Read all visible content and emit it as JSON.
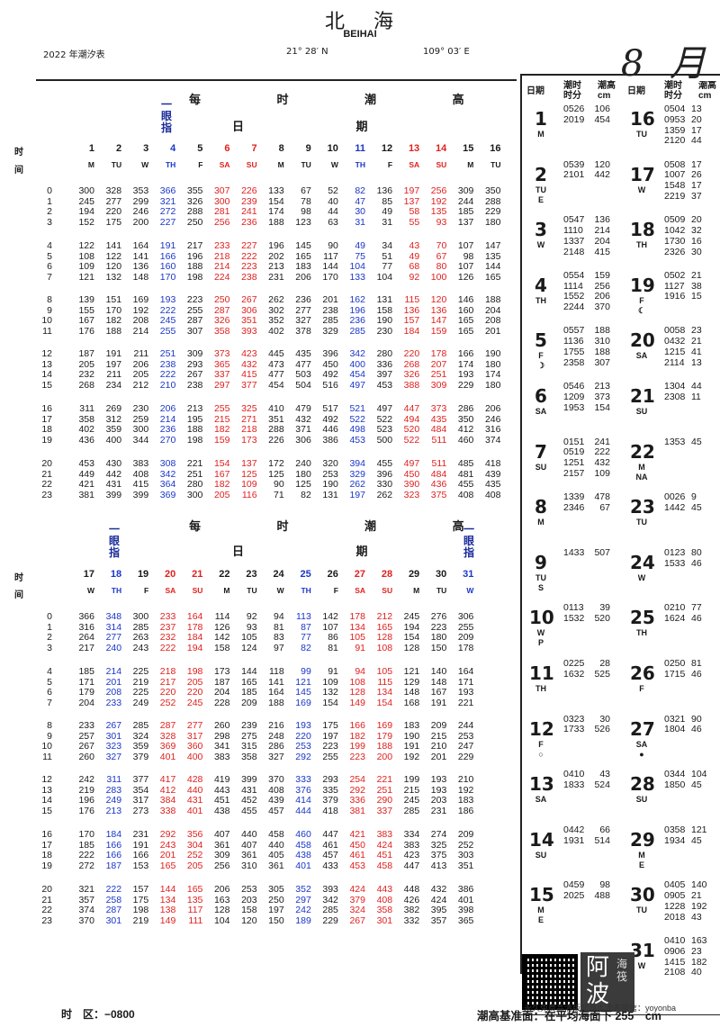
{
  "header": {
    "station_cn": "北海",
    "station_en": "BEIHAI",
    "table_title": "2022 年潮汐表",
    "lat": "21° 28′ N",
    "lon": "109° 03′ E",
    "month": "8 月"
  },
  "section_title": "每 时 潮 高",
  "date_label": "日 期",
  "hour_label_a": "时",
  "hour_label_b": "间",
  "note_text": "一眼指",
  "top": {
    "days": [
      "1",
      "2",
      "3",
      "4",
      "5",
      "6",
      "7",
      "8",
      "9",
      "10",
      "11",
      "12",
      "13",
      "14",
      "15",
      "16"
    ],
    "weekdays": [
      "M",
      "TU",
      "W",
      "TH",
      "F",
      "SA",
      "SU",
      "M",
      "TU",
      "W",
      "TH",
      "F",
      "SA",
      "SU",
      "M",
      "TU"
    ],
    "hours": [
      "0",
      "1",
      "2",
      "3",
      "4",
      "5",
      "6",
      "7",
      "8",
      "9",
      "10",
      "11",
      "12",
      "13",
      "14",
      "15",
      "16",
      "17",
      "18",
      "19",
      "20",
      "21",
      "22",
      "23"
    ],
    "rows": [
      [
        "300",
        "328",
        "353",
        "366",
        "355",
        "307",
        "226",
        "133",
        "67",
        "52",
        "82",
        "136",
        "197",
        "256",
        "309",
        "350"
      ],
      [
        "245",
        "277",
        "299",
        "321",
        "326",
        "300",
        "239",
        "154",
        "78",
        "40",
        "47",
        "85",
        "137",
        "192",
        "244",
        "288"
      ],
      [
        "194",
        "220",
        "246",
        "272",
        "288",
        "281",
        "241",
        "174",
        "98",
        "44",
        "30",
        "49",
        "58",
        "135",
        "185",
        "229"
      ],
      [
        "152",
        "175",
        "200",
        "227",
        "250",
        "256",
        "236",
        "188",
        "123",
        "63",
        "31",
        "31",
        "55",
        "93",
        "137",
        "180"
      ],
      [
        "122",
        "141",
        "164",
        "191",
        "217",
        "233",
        "227",
        "196",
        "145",
        "90",
        "49",
        "34",
        "43",
        "70",
        "107",
        "147"
      ],
      [
        "108",
        "122",
        "141",
        "166",
        "196",
        "218",
        "222",
        "202",
        "165",
        "117",
        "75",
        "51",
        "49",
        "67",
        "98",
        "135"
      ],
      [
        "109",
        "120",
        "136",
        "160",
        "188",
        "214",
        "223",
        "213",
        "183",
        "144",
        "104",
        "77",
        "68",
        "80",
        "107",
        "144"
      ],
      [
        "121",
        "132",
        "148",
        "170",
        "198",
        "224",
        "238",
        "231",
        "206",
        "170",
        "133",
        "104",
        "92",
        "100",
        "126",
        "165"
      ],
      [
        "139",
        "151",
        "169",
        "193",
        "223",
        "250",
        "267",
        "262",
        "236",
        "201",
        "162",
        "131",
        "115",
        "120",
        "146",
        "188"
      ],
      [
        "155",
        "170",
        "192",
        "222",
        "255",
        "287",
        "306",
        "302",
        "277",
        "238",
        "196",
        "158",
        "136",
        "136",
        "160",
        "204"
      ],
      [
        "167",
        "182",
        "208",
        "245",
        "287",
        "326",
        "351",
        "352",
        "327",
        "285",
        "236",
        "190",
        "157",
        "147",
        "165",
        "208"
      ],
      [
        "176",
        "188",
        "214",
        "255",
        "307",
        "358",
        "393",
        "402",
        "378",
        "329",
        "285",
        "230",
        "184",
        "159",
        "165",
        "201"
      ],
      [
        "187",
        "191",
        "211",
        "251",
        "309",
        "373",
        "423",
        "445",
        "435",
        "396",
        "342",
        "280",
        "220",
        "178",
        "166",
        "190"
      ],
      [
        "205",
        "197",
        "206",
        "238",
        "293",
        "365",
        "432",
        "473",
        "477",
        "450",
        "400",
        "336",
        "268",
        "207",
        "174",
        "180"
      ],
      [
        "232",
        "211",
        "205",
        "222",
        "267",
        "337",
        "415",
        "477",
        "503",
        "492",
        "454",
        "397",
        "326",
        "251",
        "193",
        "174"
      ],
      [
        "268",
        "234",
        "212",
        "210",
        "238",
        "297",
        "377",
        "454",
        "504",
        "516",
        "497",
        "453",
        "388",
        "309",
        "229",
        "180"
      ],
      [
        "311",
        "269",
        "230",
        "206",
        "213",
        "255",
        "325",
        "410",
        "479",
        "517",
        "521",
        "497",
        "447",
        "373",
        "286",
        "206"
      ],
      [
        "358",
        "312",
        "259",
        "214",
        "195",
        "215",
        "271",
        "351",
        "432",
        "492",
        "522",
        "522",
        "494",
        "435",
        "350",
        "246"
      ],
      [
        "402",
        "359",
        "300",
        "236",
        "188",
        "182",
        "218",
        "288",
        "371",
        "446",
        "498",
        "523",
        "520",
        "484",
        "412",
        "316"
      ],
      [
        "436",
        "400",
        "344",
        "270",
        "198",
        "159",
        "173",
        "226",
        "306",
        "386",
        "453",
        "500",
        "522",
        "511",
        "460",
        "374"
      ],
      [
        "453",
        "430",
        "383",
        "308",
        "221",
        "154",
        "137",
        "172",
        "240",
        "320",
        "394",
        "455",
        "497",
        "511",
        "485",
        "418"
      ],
      [
        "449",
        "442",
        "408",
        "342",
        "251",
        "167",
        "125",
        "125",
        "180",
        "253",
        "329",
        "396",
        "450",
        "484",
        "481",
        "439"
      ],
      [
        "421",
        "431",
        "415",
        "364",
        "280",
        "182",
        "109",
        "90",
        "125",
        "190",
        "262",
        "330",
        "390",
        "436",
        "455",
        "435"
      ],
      [
        "381",
        "399",
        "399",
        "369",
        "300",
        "205",
        "116",
        "71",
        "82",
        "131",
        "197",
        "262",
        "323",
        "375",
        "408",
        "408"
      ]
    ]
  },
  "bottom": {
    "days": [
      "17",
      "18",
      "19",
      "20",
      "21",
      "22",
      "23",
      "24",
      "25",
      "26",
      "27",
      "28",
      "29",
      "30",
      "31"
    ],
    "weekdays": [
      "W",
      "TH",
      "F",
      "SA",
      "SU",
      "M",
      "TU",
      "W",
      "TH",
      "F",
      "SA",
      "SU",
      "M",
      "TU",
      "W"
    ],
    "rows": [
      [
        "366",
        "348",
        "300",
        "233",
        "164",
        "114",
        "92",
        "94",
        "113",
        "142",
        "178",
        "212",
        "245",
        "276",
        "306"
      ],
      [
        "316",
        "314",
        "285",
        "237",
        "178",
        "126",
        "93",
        "81",
        "87",
        "107",
        "134",
        "165",
        "194",
        "223",
        "255"
      ],
      [
        "264",
        "277",
        "263",
        "232",
        "184",
        "142",
        "105",
        "83",
        "77",
        "86",
        "105",
        "128",
        "154",
        "180",
        "209"
      ],
      [
        "217",
        "240",
        "243",
        "222",
        "194",
        "158",
        "124",
        "97",
        "82",
        "81",
        "91",
        "108",
        "128",
        "150",
        "178"
      ],
      [
        "185",
        "214",
        "225",
        "218",
        "198",
        "173",
        "144",
        "118",
        "99",
        "91",
        "94",
        "105",
        "121",
        "140",
        "164"
      ],
      [
        "171",
        "201",
        "219",
        "217",
        "205",
        "187",
        "165",
        "141",
        "121",
        "109",
        "108",
        "115",
        "129",
        "148",
        "171"
      ],
      [
        "179",
        "208",
        "225",
        "220",
        "220",
        "204",
        "185",
        "164",
        "145",
        "132",
        "128",
        "134",
        "148",
        "167",
        "193"
      ],
      [
        "204",
        "233",
        "249",
        "252",
        "245",
        "228",
        "209",
        "188",
        "169",
        "154",
        "149",
        "154",
        "168",
        "191",
        "221"
      ],
      [
        "233",
        "267",
        "285",
        "287",
        "277",
        "260",
        "239",
        "216",
        "193",
        "175",
        "166",
        "169",
        "183",
        "209",
        "244"
      ],
      [
        "257",
        "301",
        "324",
        "328",
        "317",
        "298",
        "275",
        "248",
        "220",
        "197",
        "182",
        "179",
        "190",
        "215",
        "253"
      ],
      [
        "267",
        "323",
        "359",
        "369",
        "360",
        "341",
        "315",
        "286",
        "253",
        "223",
        "199",
        "188",
        "191",
        "210",
        "247"
      ],
      [
        "260",
        "327",
        "379",
        "401",
        "400",
        "383",
        "358",
        "327",
        "292",
        "255",
        "223",
        "200",
        "192",
        "201",
        "229"
      ],
      [
        "242",
        "311",
        "377",
        "417",
        "428",
        "419",
        "399",
        "370",
        "333",
        "293",
        "254",
        "221",
        "199",
        "193",
        "210"
      ],
      [
        "219",
        "283",
        "354",
        "412",
        "440",
        "443",
        "431",
        "408",
        "376",
        "335",
        "292",
        "251",
        "215",
        "193",
        "192"
      ],
      [
        "196",
        "249",
        "317",
        "384",
        "431",
        "451",
        "452",
        "439",
        "414",
        "379",
        "336",
        "290",
        "245",
        "203",
        "183"
      ],
      [
        "176",
        "213",
        "273",
        "338",
        "401",
        "438",
        "455",
        "457",
        "444",
        "418",
        "381",
        "337",
        "285",
        "231",
        "186"
      ],
      [
        "170",
        "184",
        "231",
        "292",
        "356",
        "407",
        "440",
        "458",
        "460",
        "447",
        "421",
        "383",
        "334",
        "274",
        "209"
      ],
      [
        "185",
        "166",
        "191",
        "243",
        "304",
        "361",
        "407",
        "440",
        "458",
        "461",
        "450",
        "424",
        "383",
        "325",
        "252"
      ],
      [
        "222",
        "166",
        "166",
        "201",
        "252",
        "309",
        "361",
        "405",
        "438",
        "457",
        "461",
        "451",
        "423",
        "375",
        "303"
      ],
      [
        "272",
        "187",
        "153",
        "165",
        "205",
        "256",
        "310",
        "361",
        "401",
        "433",
        "453",
        "458",
        "447",
        "413",
        "351"
      ],
      [
        "321",
        "222",
        "157",
        "144",
        "165",
        "206",
        "253",
        "305",
        "352",
        "393",
        "424",
        "443",
        "448",
        "432",
        "386"
      ],
      [
        "357",
        "258",
        "175",
        "134",
        "135",
        "163",
        "203",
        "250",
        "297",
        "342",
        "379",
        "408",
        "426",
        "424",
        "401"
      ],
      [
        "374",
        "287",
        "198",
        "138",
        "117",
        "128",
        "158",
        "197",
        "242",
        "285",
        "324",
        "358",
        "382",
        "395",
        "398"
      ],
      [
        "370",
        "301",
        "219",
        "149",
        "111",
        "104",
        "120",
        "150",
        "189",
        "229",
        "267",
        "301",
        "332",
        "357",
        "365"
      ]
    ]
  },
  "right": {
    "col_headers": {
      "date": "日期",
      "time": "潮时\n时分",
      "height": "潮高\ncm"
    },
    "left_days": [
      {
        "day": "1",
        "sub": "M",
        "times": "0526\n2019",
        "heights": "106\n454"
      },
      {
        "day": "2",
        "sub": "TU\nE",
        "times": "0539\n2101",
        "heights": "120\n442"
      },
      {
        "day": "3",
        "sub": "W",
        "times": "0547\n1110\n1337\n2148",
        "heights": "136\n214\n204\n415"
      },
      {
        "day": "4",
        "sub": "TH",
        "times": "0554\n1114\n1552\n2244",
        "heights": "159\n256\n206\n370"
      },
      {
        "day": "5",
        "sub": "F\n☽",
        "times": "0557\n1136\n1755\n2358",
        "heights": "188\n310\n188\n307"
      },
      {
        "day": "6",
        "sub": "SA",
        "times": "0546\n1209\n1953",
        "heights": "213\n373\n154"
      },
      {
        "day": "7",
        "sub": "SU",
        "times": "0151\n0519\n1251\n2157",
        "heights": "241\n222\n432\n109"
      },
      {
        "day": "8",
        "sub": "M",
        "times": "1339\n2346",
        "heights": "478\n67"
      },
      {
        "day": "9",
        "sub": "TU\nS",
        "times": "1433",
        "heights": "507"
      },
      {
        "day": "10",
        "sub": "W\nP",
        "times": "0113\n1532",
        "heights": "39\n520"
      },
      {
        "day": "11",
        "sub": "TH",
        "times": "0225\n1632",
        "heights": "28\n525"
      },
      {
        "day": "12",
        "sub": "F\n○",
        "times": "0323\n1733",
        "heights": "30\n526"
      },
      {
        "day": "13",
        "sub": "SA",
        "times": "0410\n1833",
        "heights": "43\n524"
      },
      {
        "day": "14",
        "sub": "SU",
        "times": "0442\n1931",
        "heights": "66\n514"
      },
      {
        "day": "15",
        "sub": "M\nE",
        "times": "0459\n2025",
        "heights": "98\n488"
      }
    ],
    "right_days": [
      {
        "day": "16",
        "sub": "TU",
        "times": "0504\n0953\n1359\n2120",
        "heights": "13\n20\n17\n44"
      },
      {
        "day": "17",
        "sub": "W",
        "times": "0508\n1007\n1548\n2219",
        "heights": "17\n26\n17\n37"
      },
      {
        "day": "18",
        "sub": "TH",
        "times": "0509\n1042\n1730\n2326",
        "heights": "20\n32\n16\n30"
      },
      {
        "day": "19",
        "sub": "F\n☾",
        "times": "0502\n1127\n1916",
        "heights": "21\n38\n15"
      },
      {
        "day": "20",
        "sub": "SA",
        "times": "0058\n0432\n1215\n2114",
        "heights": "23\n21\n41\n13"
      },
      {
        "day": "21",
        "sub": "SU",
        "times": "1304\n2308",
        "heights": "44\n11"
      },
      {
        "day": "22",
        "sub": "M\nNA",
        "times": "1353",
        "heights": "45"
      },
      {
        "day": "23",
        "sub": "TU",
        "times": "0026\n1442",
        "heights": "9\n45"
      },
      {
        "day": "24",
        "sub": "W",
        "times": "0123\n1533",
        "heights": "80\n46"
      },
      {
        "day": "25",
        "sub": "TH",
        "times": "0210\n1624",
        "heights": "77\n46"
      },
      {
        "day": "26",
        "sub": "F",
        "times": "0250\n1715",
        "heights": "81\n46"
      },
      {
        "day": "27",
        "sub": "SA\n●",
        "times": "0321\n1804",
        "heights": "90\n46"
      },
      {
        "day": "28",
        "sub": "SU",
        "times": "0344\n1850",
        "heights": "104\n45"
      },
      {
        "day": "29",
        "sub": "M\nE",
        "times": "0358\n1934",
        "heights": "121\n45"
      },
      {
        "day": "30",
        "sub": "TU",
        "times": "0405\n0905\n1228\n2018",
        "heights": "140\n21\n192\n43"
      },
      {
        "day": "31",
        "sub": "W",
        "times": "0410\n0906\n1415\n2108",
        "heights": "163\n23\n182\n40"
      }
    ]
  },
  "logo_text": "阿波",
  "logo_small": "海筏",
  "promo_text": "永久免费高清版北海水流表微信：yoyonba",
  "footer": {
    "timezone": "时　区：−0800",
    "datum": "潮高基准面：在平均海面下 255　cm"
  },
  "colors": {
    "red": "#e0201e",
    "blue": "#1a36c8",
    "ink": "#1a1a1a"
  }
}
